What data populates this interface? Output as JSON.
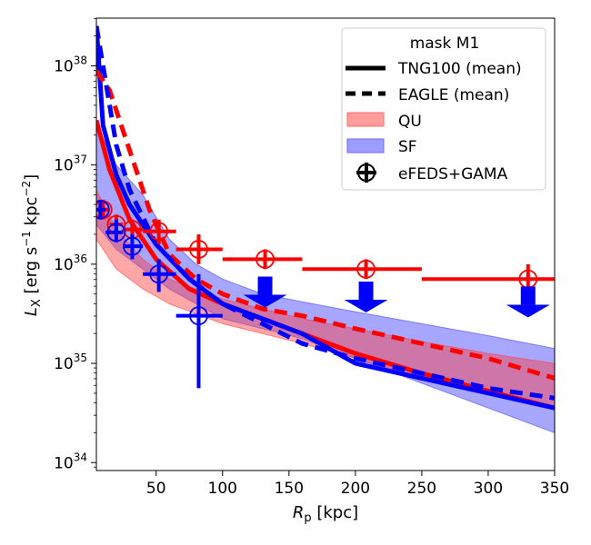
{
  "chart_data": {
    "type": "line",
    "xlabel_var": "R",
    "xlabel_sub": "p",
    "xlabel_unit": " [kpc]",
    "ylabel_var": "L",
    "ylabel_sub": "X",
    "ylabel_unit_pre": " [erg s",
    "ylabel_exp1": "−1",
    "ylabel_unit_mid": " kpc",
    "ylabel_exp2": "−2",
    "ylabel_unit_post": "]",
    "xlim": [
      5,
      350
    ],
    "ylim_log10": [
      33.92,
      38.48
    ],
    "yscale": "log",
    "xticks": [
      50,
      100,
      150,
      200,
      250,
      300,
      350
    ],
    "xtick_labels": [
      "50",
      "100",
      "150",
      "200",
      "250",
      "300",
      "350"
    ],
    "ytick_exponents": [
      34,
      35,
      36,
      37,
      38
    ],
    "ytick_base": "10",
    "ytick_sup": [
      "34",
      "35",
      "36",
      "37",
      "38"
    ],
    "legend": {
      "title": "mask M1",
      "position": "top-right",
      "entries": [
        "TNG100 (mean)",
        "EAGLE (mean)",
        "QU",
        "SF",
        "eFEDS+GAMA"
      ]
    },
    "colors": {
      "QU": "#ff0000",
      "SF": "#0000ff",
      "QU_band": "#ff3b3b",
      "SF_band": "#3b3bff"
    },
    "bands": [
      {
        "name": "SF",
        "x": [
          5,
          20,
          40,
          60,
          80,
          100,
          130,
          160,
          200,
          250,
          300,
          350
        ],
        "lower": [
          36.4,
          36.15,
          35.95,
          35.75,
          35.6,
          35.45,
          35.35,
          35.25,
          35.05,
          34.8,
          34.55,
          34.3
        ],
        "upper": [
          37.4,
          37.0,
          36.7,
          36.25,
          36.0,
          35.85,
          35.7,
          35.62,
          35.52,
          35.4,
          35.28,
          35.15
        ]
      },
      {
        "name": "QU",
        "x": [
          5,
          20,
          40,
          60,
          80,
          100,
          130,
          160,
          200,
          250,
          300,
          350
        ],
        "lower": [
          36.25,
          35.95,
          35.75,
          35.6,
          35.5,
          35.4,
          35.3,
          35.2,
          35.05,
          34.85,
          34.7,
          34.55
        ],
        "upper": [
          36.75,
          36.35,
          36.05,
          35.85,
          35.75,
          35.65,
          35.55,
          35.45,
          35.35,
          35.22,
          35.1,
          35.0
        ]
      }
    ],
    "series": [
      {
        "model": "TNG100",
        "sample": "QU",
        "x": [
          5,
          15,
          30,
          50,
          75,
          100,
          130,
          160,
          200,
          250,
          300,
          350
        ],
        "y": [
          37.45,
          36.95,
          36.45,
          36.05,
          35.75,
          35.6,
          35.45,
          35.3,
          35.1,
          34.9,
          34.72,
          34.55
        ]
      },
      {
        "model": "TNG100",
        "sample": "SF",
        "x": [
          5,
          10,
          20,
          30,
          50,
          75,
          100,
          130,
          160,
          200,
          250,
          300,
          350
        ],
        "y": [
          38.4,
          37.4,
          36.9,
          36.6,
          36.2,
          35.85,
          35.6,
          35.45,
          35.3,
          35.0,
          34.85,
          34.7,
          34.55
        ]
      },
      {
        "model": "EAGLE",
        "sample": "QU",
        "x": [
          5,
          15,
          30,
          45,
          60,
          80,
          100,
          130,
          160,
          200,
          250,
          300,
          350
        ],
        "y": [
          37.95,
          37.75,
          37.15,
          36.55,
          36.1,
          35.85,
          35.7,
          35.55,
          35.48,
          35.35,
          35.2,
          35.05,
          34.85
        ]
      },
      {
        "model": "EAGLE",
        "sample": "SF",
        "x": [
          5,
          10,
          20,
          30,
          50,
          75,
          100,
          130,
          160,
          200,
          250,
          300,
          350
        ],
        "y": [
          38.4,
          38.0,
          37.2,
          36.75,
          36.2,
          35.85,
          35.6,
          35.4,
          35.2,
          35.05,
          34.9,
          34.75,
          34.65
        ]
      }
    ],
    "observations": [
      {
        "sample": "QU",
        "x": 10,
        "y": 36.55,
        "xerr": [
          5,
          15
        ],
        "yerr": [
          36.45,
          36.65
        ],
        "upper_limit": false
      },
      {
        "sample": "QU",
        "x": 20,
        "y": 36.4,
        "xerr": [
          15,
          25
        ],
        "yerr": [
          36.3,
          36.5
        ],
        "upper_limit": false
      },
      {
        "sample": "QU",
        "x": 32,
        "y": 36.35,
        "xerr": [
          25,
          40
        ],
        "yerr": [
          36.25,
          36.45
        ],
        "upper_limit": false
      },
      {
        "sample": "QU",
        "x": 52,
        "y": 36.33,
        "xerr": [
          40,
          65
        ],
        "yerr": [
          36.2,
          36.45
        ],
        "upper_limit": false
      },
      {
        "sample": "QU",
        "x": 82,
        "y": 36.15,
        "xerr": [
          65,
          100
        ],
        "yerr": [
          36.0,
          36.3
        ],
        "upper_limit": false
      },
      {
        "sample": "QU",
        "x": 132,
        "y": 36.05,
        "xerr": [
          100,
          160
        ],
        "yerr": [
          35.95,
          36.15
        ],
        "upper_limit": false
      },
      {
        "sample": "QU",
        "x": 208,
        "y": 35.95,
        "xerr": [
          160,
          250
        ],
        "yerr": [
          35.85,
          36.05
        ],
        "upper_limit": false
      },
      {
        "sample": "QU",
        "x": 330,
        "y": 35.85,
        "xerr": [
          250,
          350
        ],
        "yerr": [
          35.7,
          36.0
        ],
        "upper_limit": false
      },
      {
        "sample": "SF",
        "x": 8,
        "y": 36.55,
        "xerr": [
          5,
          12
        ],
        "yerr": [
          36.45,
          36.65
        ],
        "upper_limit": false
      },
      {
        "sample": "SF",
        "x": 20,
        "y": 36.32,
        "xerr": [
          12,
          25
        ],
        "yerr": [
          36.22,
          36.45
        ],
        "upper_limit": false
      },
      {
        "sample": "SF",
        "x": 32,
        "y": 36.18,
        "xerr": [
          25,
          40
        ],
        "yerr": [
          36.05,
          36.3
        ],
        "upper_limit": false
      },
      {
        "sample": "SF",
        "x": 52,
        "y": 35.9,
        "xerr": [
          40,
          65
        ],
        "yerr": [
          35.72,
          36.05
        ],
        "upper_limit": false
      },
      {
        "sample": "SF",
        "x": 82,
        "y": 35.48,
        "xerr": [
          65,
          100
        ],
        "yerr": [
          34.75,
          35.9
        ],
        "upper_limit": false
      },
      {
        "sample": "SF",
        "x": 132,
        "y": 35.6,
        "xerr": null,
        "yerr": null,
        "upper_limit": true
      },
      {
        "sample": "SF",
        "x": 208,
        "y": 35.55,
        "xerr": null,
        "yerr": null,
        "upper_limit": true
      },
      {
        "sample": "SF",
        "x": 330,
        "y": 35.5,
        "xerr": null,
        "yerr": null,
        "upper_limit": true
      }
    ]
  }
}
